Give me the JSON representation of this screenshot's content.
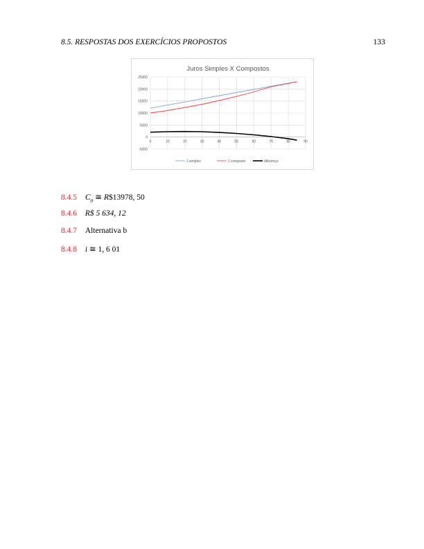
{
  "header": {
    "section": "8.5. RESPOSTAS DOS EXERCÍCIOS PROPOSTOS",
    "page_number": "133"
  },
  "chart_data": {
    "type": "line",
    "title": "Juros Simples X Compostos",
    "xlabel": "",
    "ylabel": "",
    "xlim": [
      0,
      90
    ],
    "ylim": [
      -5000,
      25000
    ],
    "x_ticks": [
      "0",
      "10",
      "20",
      "30",
      "40",
      "50",
      "60",
      "70",
      "80",
      "90"
    ],
    "y_ticks": [
      "-5000",
      "0",
      "5000",
      "10000",
      "15000",
      "20000",
      "25000"
    ],
    "grid": true,
    "legend": "bottom",
    "x": [
      0,
      10,
      20,
      30,
      40,
      50,
      60,
      70,
      80,
      85
    ],
    "series": [
      {
        "name": "J simples",
        "color": "#7ea6e0",
        "values": [
          12000,
          13300,
          14600,
          15900,
          17200,
          18500,
          19800,
          21100,
          22400,
          23050
        ]
      },
      {
        "name": "J composto",
        "color": "#ff3b3b",
        "values": [
          10000,
          11000,
          12300,
          13600,
          15200,
          16900,
          18800,
          20900,
          22300,
          23000
        ]
      },
      {
        "name": "diferença",
        "color": "#000000",
        "values": [
          2000,
          2200,
          2300,
          2200,
          1900,
          1500,
          900,
          200,
          -700,
          -1300
        ]
      }
    ]
  },
  "answers": [
    {
      "number": "8.4.5",
      "text": "Co ≅ R$13978, 50"
    },
    {
      "number": "8.4.6",
      "text": "R$ 5 634, 12"
    },
    {
      "number": "8.4.7",
      "text": "Alternativa b"
    },
    {
      "number": "8.4.8",
      "text": "i ≅ 1, 6 01"
    }
  ]
}
